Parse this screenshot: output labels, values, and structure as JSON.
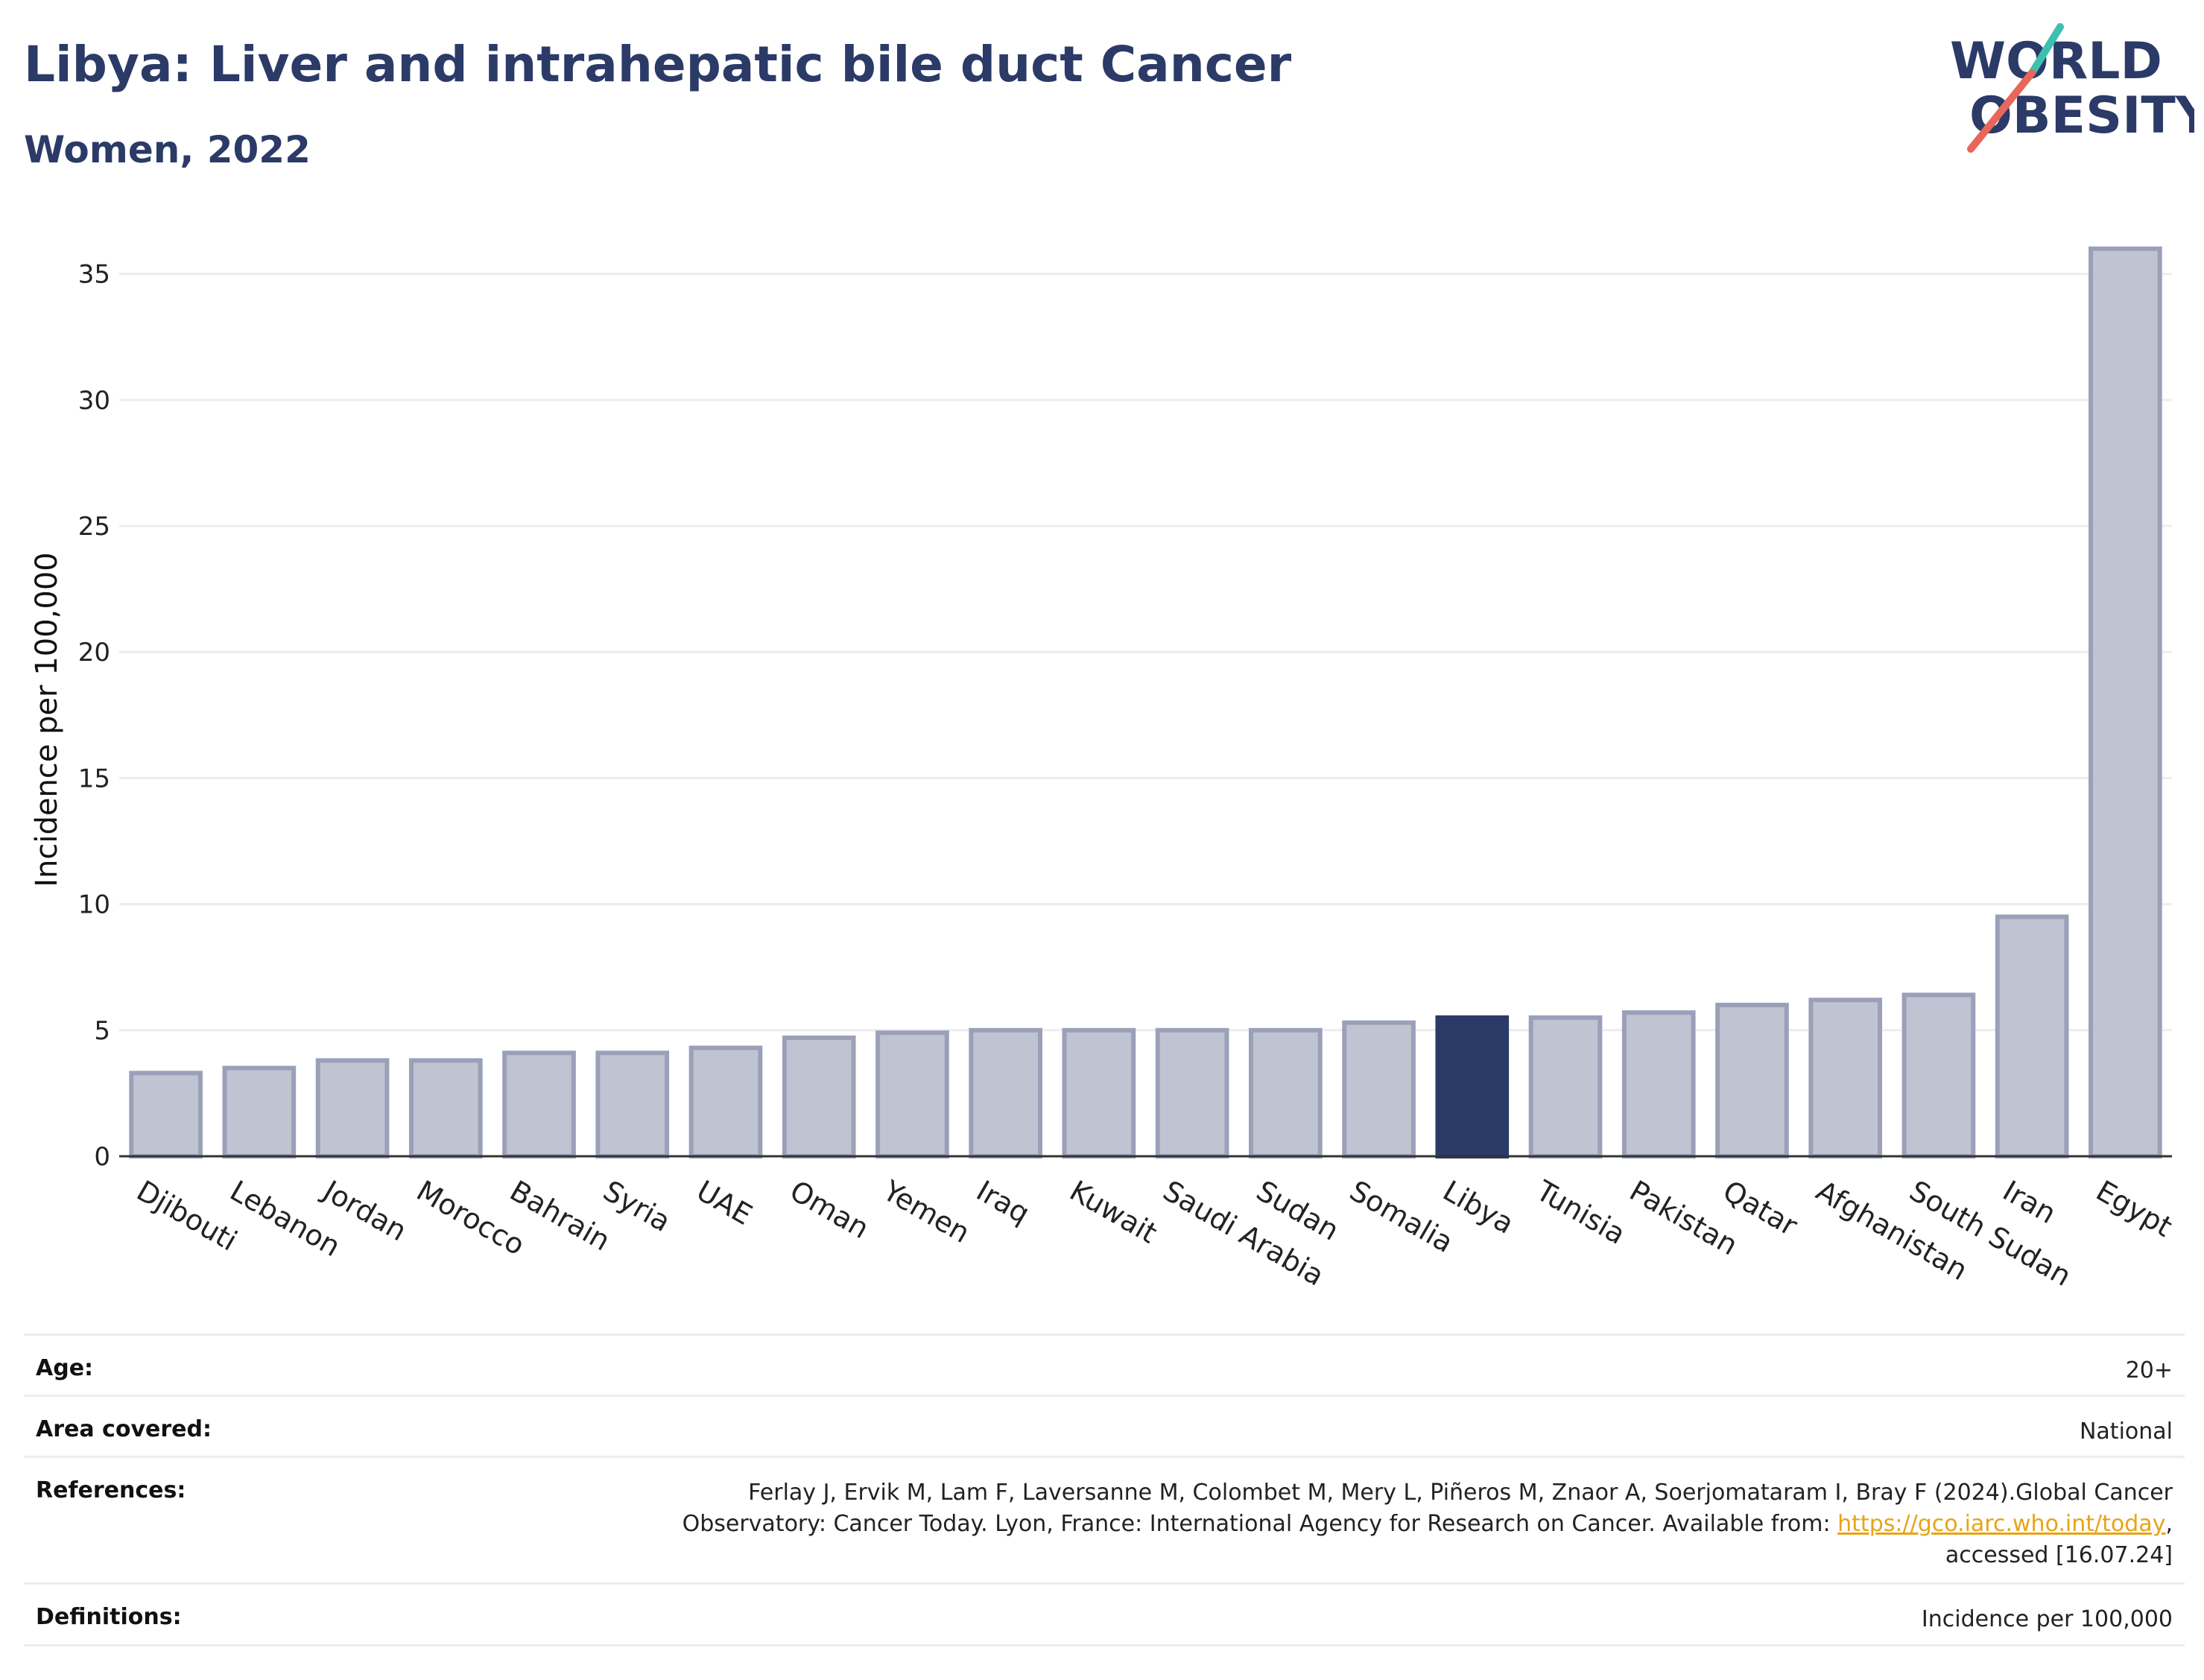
{
  "header": {
    "title": "Libya: Liver and intrahepatic bile duct Cancer",
    "subtitle": "Women, 2022"
  },
  "logo": {
    "line1": "WORLD",
    "line2": "OBESITY",
    "text_color": "#2b3a67",
    "slash_colors": [
      "#3fbfb0",
      "#e8665a"
    ]
  },
  "chart_data": {
    "type": "bar",
    "categories": [
      "Djibouti",
      "Lebanon",
      "Jordan",
      "Morocco",
      "Bahrain",
      "Syria",
      "UAE",
      "Oman",
      "Yemen",
      "Iraq",
      "Kuwait",
      "Saudi Arabia",
      "Sudan",
      "Somalia",
      "Libya",
      "Tunisia",
      "Pakistan",
      "Qatar",
      "Afghanistan",
      "South Sudan",
      "Iran",
      "Egypt"
    ],
    "values": [
      3.3,
      3.5,
      3.8,
      3.8,
      4.1,
      4.1,
      4.3,
      4.7,
      4.9,
      5.0,
      5.0,
      5.0,
      5.0,
      5.3,
      5.5,
      5.5,
      5.7,
      6.0,
      6.2,
      6.4,
      9.5,
      36.0
    ],
    "highlight": "Libya",
    "title": "",
    "xlabel": "",
    "ylabel": "Incidence per 100,000",
    "ylim": [
      0,
      37
    ],
    "yticks": [
      0,
      5,
      10,
      15,
      20,
      25,
      30,
      35
    ],
    "grid": true,
    "legend": "none",
    "colors": {
      "bar": "#c0c3d1",
      "bar_edge": "#9ba0b9",
      "highlight": "#2b3a67",
      "grid": "#ececf2",
      "axis": "#333333"
    }
  },
  "info": {
    "age_label": "Age:",
    "age_value": "20+",
    "area_label": "Area covered:",
    "area_value": "National",
    "references_label": "References:",
    "references_line1": "Ferlay J, Ervik M, Lam F, Laversanne M, Colombet M, Mery L, Piñeros M, Znaor A, Soerjomataram I, Bray F (2024).Global Cancer",
    "references_line2": "Observatory: Cancer Today. Lyon, France: International Agency for Research on Cancer. Available from: ",
    "references_link": "https://gco.iarc.who.int/today",
    "references_line2_end": ",",
    "references_line3": "accessed [16.07.24]",
    "definitions_label": "Definitions:",
    "definitions_value": "Incidence per 100,000"
  }
}
